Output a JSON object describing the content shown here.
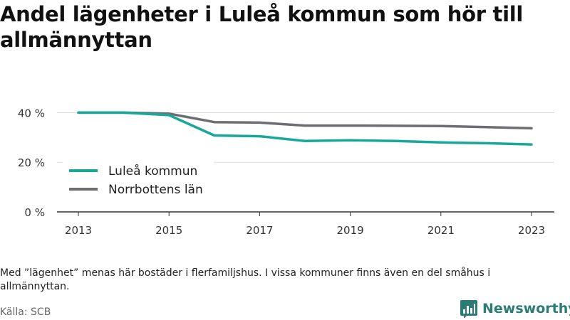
{
  "title": "Andel lägenheter i Luleå kommun som hör till allmännyttan",
  "note": "Med ”lägenhet” menas här bostäder i flerfamiljshus. I vissa kommuner finns även en del småhus i allmännyttan.",
  "source": "Källa: SCB",
  "brand": "Newsworthy",
  "colors": {
    "lulea": "#18a89a",
    "norrbotten": "#6d6e73",
    "grid": "#dddddd",
    "brand": "#2a7c74"
  },
  "chart_data": {
    "type": "line",
    "x": [
      2013,
      2014,
      2015,
      2016,
      2017,
      2018,
      2019,
      2020,
      2021,
      2022,
      2023
    ],
    "x_tick_labels": [
      "2013",
      "2015",
      "2017",
      "2019",
      "2021",
      "2023"
    ],
    "y_tick_labels": [
      "0 %",
      "20 %",
      "40 %"
    ],
    "ylim": [
      0,
      45
    ],
    "grid": true,
    "legend_position": "bottom-left",
    "series": [
      {
        "name": "Luleå kommun",
        "values": [
          40.0,
          40.0,
          39.0,
          30.8,
          30.5,
          28.6,
          28.9,
          28.6,
          28.0,
          27.7,
          27.2
        ]
      },
      {
        "name": "Norrbottens län",
        "values": [
          40.0,
          40.0,
          39.6,
          36.2,
          36.0,
          34.8,
          34.8,
          34.7,
          34.6,
          34.2,
          33.7
        ]
      }
    ]
  }
}
